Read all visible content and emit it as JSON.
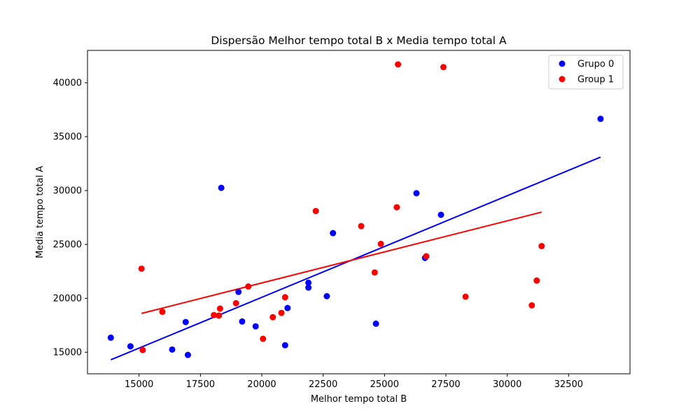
{
  "chart_data": {
    "type": "scatter",
    "title": "Dispersão Melhor tempo total B x Media tempo total A",
    "xlabel": "Melhor tempo total B",
    "ylabel": "Media tempo total A",
    "xlim": [
      12900,
      35000
    ],
    "ylim": [
      13000,
      43000
    ],
    "xticks": [
      15000,
      17500,
      20000,
      22500,
      25000,
      27500,
      30000,
      32500
    ],
    "yticks": [
      15000,
      20000,
      25000,
      30000,
      35000,
      40000
    ],
    "grid": false,
    "legend_position": "top-right",
    "series": [
      {
        "name": "Grupo 0",
        "color": "#0000ff",
        "points": [
          [
            13850,
            16350
          ],
          [
            14650,
            15550
          ],
          [
            16350,
            15250
          ],
          [
            16900,
            17800
          ],
          [
            16990,
            14750
          ],
          [
            18350,
            30250
          ],
          [
            19050,
            20600
          ],
          [
            19200,
            17850
          ],
          [
            19750,
            17400
          ],
          [
            20950,
            15650
          ],
          [
            21050,
            19100
          ],
          [
            21900,
            21000
          ],
          [
            21900,
            21450
          ],
          [
            22650,
            20200
          ],
          [
            22900,
            26050
          ],
          [
            24650,
            17650
          ],
          [
            26300,
            29750
          ],
          [
            26650,
            23750
          ],
          [
            27300,
            27750
          ],
          [
            33800,
            36650
          ]
        ],
        "trend_line": {
          "x": [
            13850,
            33800
          ],
          "y": [
            14300,
            33100
          ]
        }
      },
      {
        "name": "Group 1",
        "color": "#ff0000",
        "points": [
          [
            15100,
            22750
          ],
          [
            15150,
            15200
          ],
          [
            15950,
            18750
          ],
          [
            18050,
            18450
          ],
          [
            18250,
            18400
          ],
          [
            18300,
            19050
          ],
          [
            18950,
            19550
          ],
          [
            19450,
            21100
          ],
          [
            20050,
            16250
          ],
          [
            20450,
            18250
          ],
          [
            20800,
            18650
          ],
          [
            20950,
            20100
          ],
          [
            22200,
            28100
          ],
          [
            24050,
            26700
          ],
          [
            24600,
            22400
          ],
          [
            24850,
            25050
          ],
          [
            25500,
            28450
          ],
          [
            25550,
            41700
          ],
          [
            26700,
            23900
          ],
          [
            27400,
            41450
          ],
          [
            28300,
            20150
          ],
          [
            31000,
            19350
          ],
          [
            31200,
            21650
          ],
          [
            31400,
            24850
          ]
        ],
        "trend_line": {
          "x": [
            15100,
            31400
          ],
          "y": [
            18600,
            28000
          ]
        }
      }
    ]
  }
}
